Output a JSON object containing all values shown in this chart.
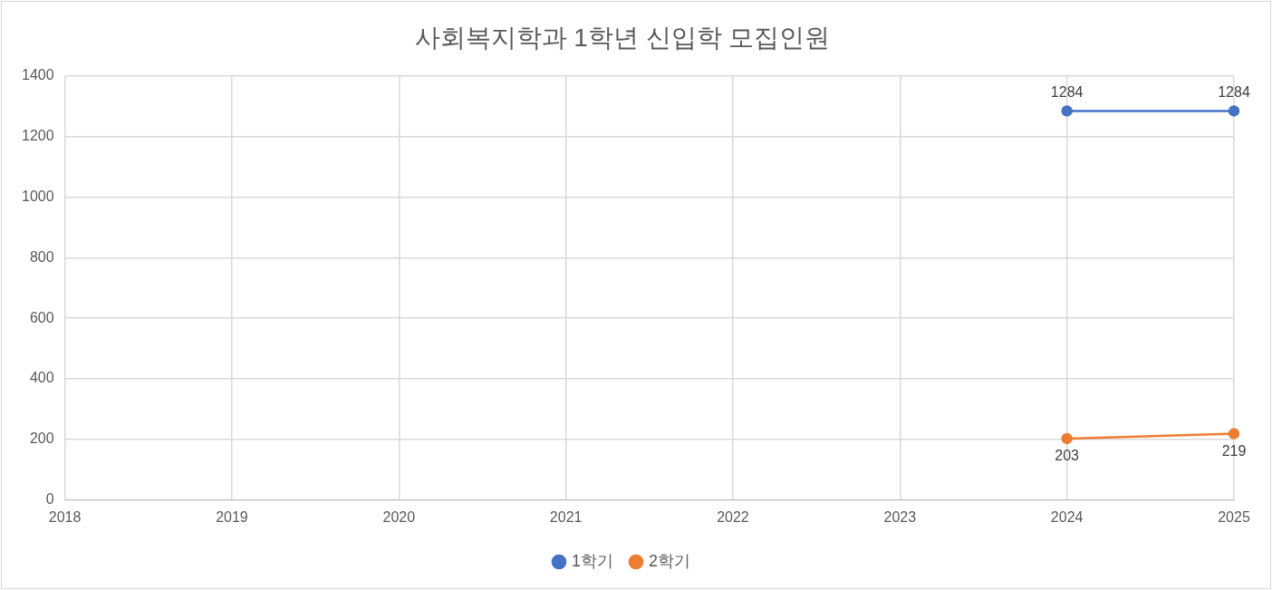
{
  "chart_data": {
    "type": "line",
    "title": "사회복지학과 1학년 신입학 모집인원",
    "categories": [
      "2018",
      "2019",
      "2020",
      "2021",
      "2022",
      "2023",
      "2024",
      "2025"
    ],
    "series": [
      {
        "name": "1학기",
        "color": "#4472c4",
        "values": [
          null,
          null,
          null,
          null,
          null,
          null,
          1284,
          1284
        ]
      },
      {
        "name": "2학기",
        "color": "#ed7d31",
        "values": [
          null,
          null,
          null,
          null,
          null,
          null,
          203,
          219
        ]
      }
    ],
    "ylim": [
      0,
      1400
    ],
    "yticks": [
      0,
      200,
      400,
      600,
      800,
      1000,
      1200,
      1400
    ],
    "grid": true,
    "legend": "bottom",
    "marker": "circle",
    "line_style": "solid",
    "data_labels": true
  }
}
